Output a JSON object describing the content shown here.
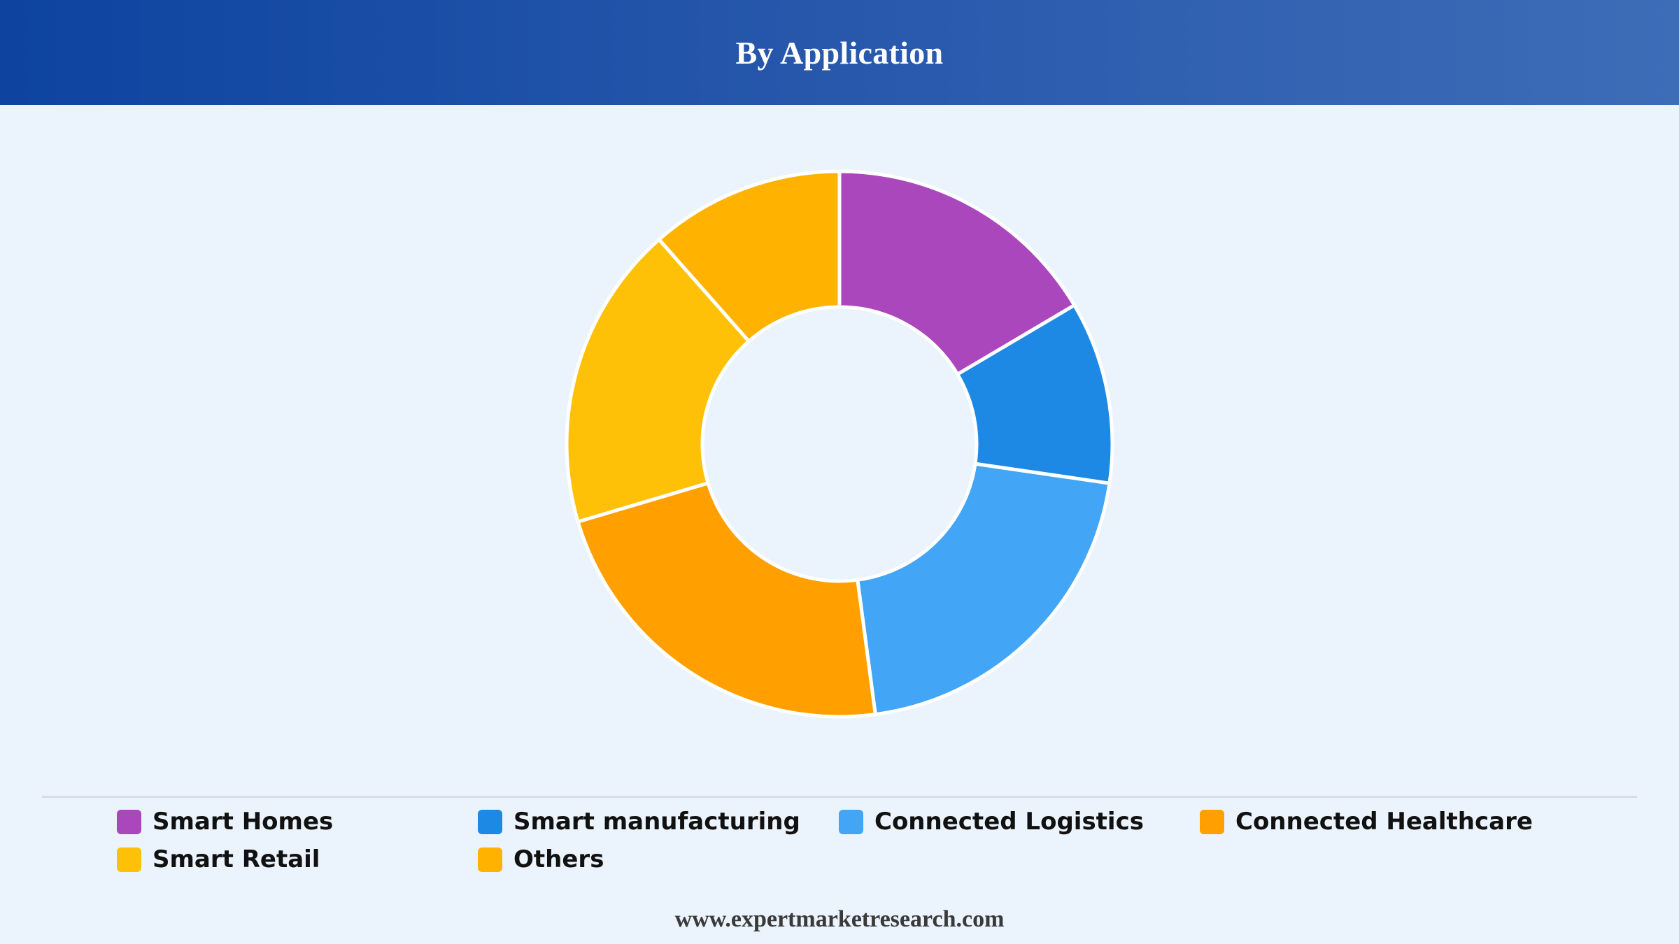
{
  "header": {
    "title": "By Application"
  },
  "chart_data": {
    "type": "pie",
    "variant": "donut",
    "title": "By Application",
    "categories": [
      "Smart Homes",
      "Smart manufacturing",
      "Connected Logistics",
      "Connected Healthcare",
      "Smart Retail",
      "Others"
    ],
    "values": [
      16.5,
      10.8,
      20.6,
      22.5,
      18.1,
      11.5
    ],
    "colors": [
      "#ab47bc",
      "#1e88e5",
      "#42a5f5",
      "#ffa000",
      "#ffc107",
      "#ffb300"
    ],
    "legend_position": "bottom"
  },
  "legend": {
    "items": [
      {
        "label": "Smart Homes",
        "color": "#ab47bc"
      },
      {
        "label": "Smart manufacturing",
        "color": "#1e88e5"
      },
      {
        "label": "Connected Logistics",
        "color": "#42a5f5"
      },
      {
        "label": "Connected Healthcare",
        "color": "#ffa000"
      },
      {
        "label": "Smart Retail",
        "color": "#ffc107"
      },
      {
        "label": "Others",
        "color": "#ffb300"
      }
    ]
  },
  "footer": {
    "source": "www.expertmarketresearch.com"
  }
}
